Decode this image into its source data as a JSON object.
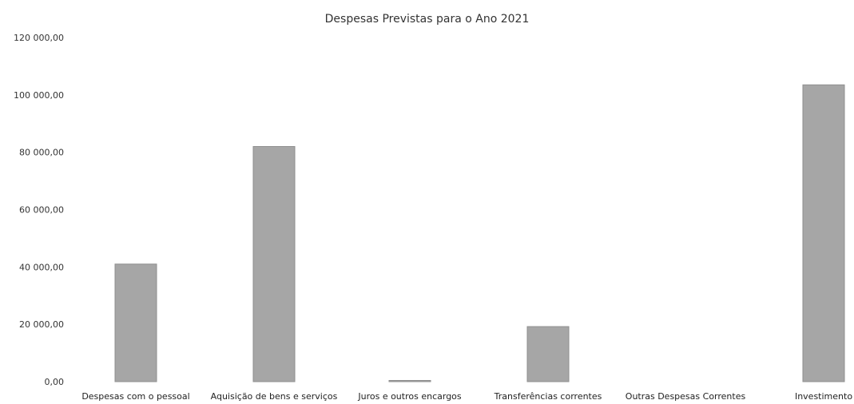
{
  "chart_data": {
    "type": "bar",
    "title": "Despesas Previstas para o Ano 2021",
    "categories": [
      "Despesas com o pessoal",
      "Aquisição de bens e serviços",
      "Juros e outros encargos",
      "Transferências correntes",
      "Outras Despesas Correntes",
      "Investimento"
    ],
    "values": [
      41000,
      82000,
      400,
      19200,
      0,
      103500
    ],
    "ylim": [
      0,
      120000
    ],
    "yticks": [
      0,
      20000,
      40000,
      60000,
      80000,
      100000,
      120000
    ],
    "ytick_labels": [
      "0,00",
      "20 000,00",
      "40 000,00",
      "60 000,00",
      "80 000,00",
      "100 000,00",
      "120 000,00"
    ],
    "xlabel": "",
    "ylabel": "",
    "grid": false,
    "legend": "none",
    "bar_color": "#a6a6a6"
  }
}
